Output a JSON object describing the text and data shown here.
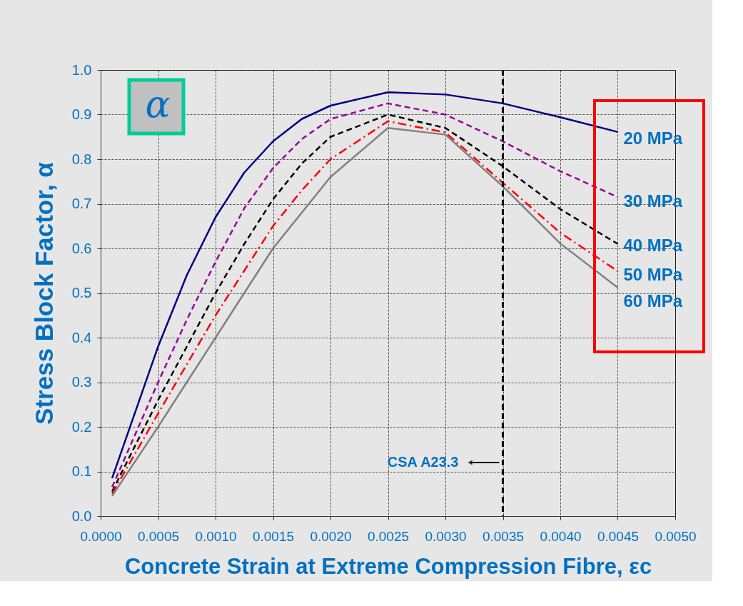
{
  "chart_data": {
    "type": "line",
    "xlabel": "Concrete Strain at Extreme Compression Fibre, εc",
    "ylabel": "Stress Block Factor, α",
    "x": [
      0.0001,
      0.0005,
      0.00075,
      0.001,
      0.00125,
      0.0015,
      0.00175,
      0.002,
      0.0025,
      0.003,
      0.0035,
      0.004,
      0.0045
    ],
    "series": [
      {
        "name": "20 MPa",
        "color": "#000080",
        "line_style": "solid",
        "values": [
          0.085,
          0.38,
          0.54,
          0.67,
          0.77,
          0.84,
          0.89,
          0.92,
          0.95,
          0.945,
          0.925,
          0.894,
          0.861
        ]
      },
      {
        "name": "30 MPa",
        "color": "#990099",
        "line_style": "dashed",
        "values": [
          0.065,
          0.3,
          0.44,
          0.57,
          0.69,
          0.78,
          0.845,
          0.89,
          0.925,
          0.9,
          0.84,
          0.773,
          0.715
        ]
      },
      {
        "name": "40 MPa",
        "color": "#000000",
        "line_style": "dashed",
        "values": [
          0.055,
          0.26,
          0.38,
          0.5,
          0.61,
          0.71,
          0.79,
          0.85,
          0.9,
          0.87,
          0.784,
          0.688,
          0.61
        ]
      },
      {
        "name": "50 MPa",
        "color": "#ff0000",
        "line_style": "dashdot",
        "values": [
          0.05,
          0.23,
          0.34,
          0.45,
          0.55,
          0.65,
          0.73,
          0.8,
          0.885,
          0.86,
          0.747,
          0.635,
          0.549
        ]
      },
      {
        "name": "60 MPa",
        "color": "#808080",
        "line_style": "solid",
        "values": [
          0.045,
          0.2,
          0.3,
          0.4,
          0.5,
          0.6,
          0.68,
          0.76,
          0.87,
          0.855,
          0.739,
          0.611,
          0.512
        ]
      }
    ],
    "xlim": [
      0,
      0.005
    ],
    "xticks": [
      {
        "value": 0,
        "label": "0.0000"
      },
      {
        "value": 0.0005,
        "label": "0.0005"
      },
      {
        "value": 0.001,
        "label": "0.0010"
      },
      {
        "value": 0.0015,
        "label": "0.0015"
      },
      {
        "value": 0.002,
        "label": "0.0020"
      },
      {
        "value": 0.0025,
        "label": "0.0025"
      },
      {
        "value": 0.003,
        "label": "0.0030"
      },
      {
        "value": 0.0035,
        "label": "0.0035"
      },
      {
        "value": 0.004,
        "label": "0.0040"
      },
      {
        "value": 0.0045,
        "label": "0.0045"
      },
      {
        "value": 0.005,
        "label": "0.0050"
      }
    ],
    "ylim": [
      0,
      1
    ],
    "yticks": [
      {
        "value": 0,
        "label": "0.0"
      },
      {
        "value": 0.1,
        "label": "0.1"
      },
      {
        "value": 0.2,
        "label": "0.2"
      },
      {
        "value": 0.3,
        "label": "0.3"
      },
      {
        "value": 0.4,
        "label": "0.4"
      },
      {
        "value": 0.5,
        "label": "0.5"
      },
      {
        "value": 0.6,
        "label": "0.6"
      },
      {
        "value": 0.7,
        "label": "0.7"
      },
      {
        "value": 0.8,
        "label": "0.8"
      },
      {
        "value": 0.9,
        "label": "0.9"
      },
      {
        "value": 1.0,
        "label": "1.0"
      }
    ],
    "ref_lines": [
      {
        "axis": "x",
        "value": 0.0035,
        "label": "CSA A23.3",
        "color": "#000000",
        "line_style": "dashed"
      }
    ],
    "annotations": [
      "α"
    ],
    "grid": true,
    "legend": false,
    "marker": "none"
  }
}
